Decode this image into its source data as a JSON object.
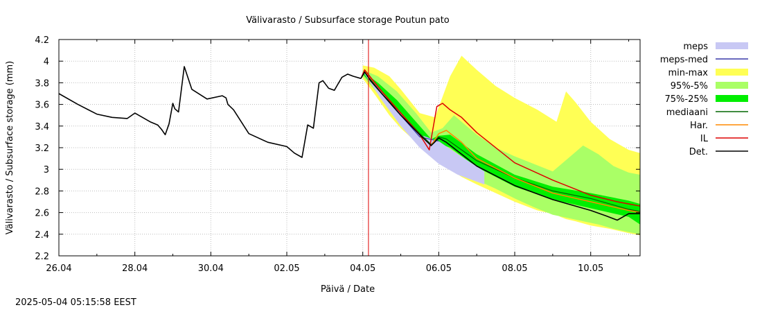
{
  "chart_data": {
    "type": "area",
    "title": "Välivarasto / Subsurface storage  Poutun pato",
    "xlabel": "Päivä / Date",
    "ylabel": "Välivarasto / Subsurface storage (mm)",
    "xlim": [
      0,
      15.3
    ],
    "ylim": [
      2.2,
      4.2
    ],
    "yticks": [
      "2.2",
      "2.4",
      "2.6",
      "2.8",
      "3",
      "3.2",
      "3.4",
      "3.6",
      "3.8",
      "4",
      "4.2"
    ],
    "xticks": [
      {
        "x": 0,
        "label": "26.04"
      },
      {
        "x": 2,
        "label": "28.04"
      },
      {
        "x": 4,
        "label": "30.04"
      },
      {
        "x": 6,
        "label": "02.05"
      },
      {
        "x": 8,
        "label": "04.05"
      },
      {
        "x": 10,
        "label": "06.05"
      },
      {
        "x": 12,
        "label": "08.05"
      },
      {
        "x": 14,
        "label": "10.05"
      }
    ],
    "forecast_start_x": 8.15,
    "timestamp": "2025-05-04 05:15:58 EEST",
    "legend": [
      {
        "label": "meps",
        "kind": "box",
        "color": "#c8c8f4"
      },
      {
        "label": "meps-med",
        "kind": "line",
        "color": "#3838a8"
      },
      {
        "label": "min-max",
        "kind": "box",
        "color": "#ffff55"
      },
      {
        "label": "95%-5%",
        "kind": "box",
        "color": "#aaff66"
      },
      {
        "label": "75%-25%",
        "kind": "box",
        "color": "#00ee00"
      },
      {
        "label": "mediaani",
        "kind": "line",
        "color": "#006600"
      },
      {
        "label": "Har.",
        "kind": "line",
        "color": "#ff8800"
      },
      {
        "label": "IL",
        "kind": "line",
        "color": "#dd0000"
      },
      {
        "label": "Det.",
        "kind": "line",
        "color": "#000000"
      }
    ],
    "series": {
      "observed": {
        "name": "Det. (history)",
        "x": [
          0,
          0.5,
          1.0,
          1.4,
          1.8,
          2.0,
          2.4,
          2.6,
          2.7,
          2.8,
          2.9,
          3.0,
          3.05,
          3.15,
          3.3,
          3.5,
          3.9,
          4.3,
          4.4,
          4.45,
          4.6,
          5.0,
          5.5,
          6.0,
          6.2,
          6.4,
          6.55,
          6.7,
          6.85,
          6.95,
          7.1,
          7.25,
          7.45,
          7.6,
          7.75,
          7.95
        ],
        "y": [
          3.7,
          3.6,
          3.51,
          3.48,
          3.47,
          3.52,
          3.44,
          3.41,
          3.37,
          3.32,
          3.42,
          3.61,
          3.56,
          3.53,
          3.95,
          3.74,
          3.65,
          3.68,
          3.66,
          3.6,
          3.55,
          3.33,
          3.25,
          3.21,
          3.15,
          3.11,
          3.41,
          3.38,
          3.8,
          3.82,
          3.75,
          3.73,
          3.85,
          3.88,
          3.86,
          3.84
        ]
      },
      "det": {
        "name": "Det.",
        "x": [
          7.95,
          8.05,
          8.2,
          8.5,
          9.0,
          9.5,
          9.8,
          10.0,
          10.2,
          10.6,
          11.0,
          12.0,
          13.0,
          14.0,
          14.4,
          14.7,
          15.0,
          15.3
        ],
        "y": [
          3.84,
          3.9,
          3.82,
          3.7,
          3.5,
          3.32,
          3.22,
          3.29,
          3.25,
          3.14,
          3.03,
          2.85,
          2.72,
          2.62,
          2.57,
          2.53,
          2.59,
          2.59
        ]
      },
      "mediaani": {
        "name": "mediaani",
        "x": [
          7.95,
          8.05,
          8.5,
          9.0,
          9.5,
          9.8,
          10.0,
          10.2,
          11.0,
          12.0,
          13.0,
          14.0,
          15.0,
          15.3
        ],
        "y": [
          3.84,
          3.9,
          3.7,
          3.52,
          3.33,
          3.23,
          3.3,
          3.28,
          3.08,
          2.92,
          2.8,
          2.73,
          2.63,
          2.61
        ]
      },
      "har": {
        "name": "Har.",
        "x": [
          7.95,
          8.05,
          8.5,
          9.0,
          9.5,
          9.8,
          10.0,
          10.2,
          10.6,
          11.0,
          12.0,
          13.0,
          14.0,
          15.0,
          15.3
        ],
        "y": [
          3.84,
          3.91,
          3.72,
          3.52,
          3.32,
          3.22,
          3.33,
          3.36,
          3.25,
          3.1,
          2.92,
          2.78,
          2.7,
          2.62,
          2.6
        ]
      },
      "il": {
        "name": "IL",
        "x": [
          7.95,
          8.05,
          8.5,
          9.0,
          9.5,
          9.75,
          9.95,
          10.1,
          10.3,
          10.6,
          11.0,
          12.0,
          13.0,
          14.0,
          14.7,
          15.0,
          15.3
        ],
        "y": [
          3.84,
          3.92,
          3.72,
          3.52,
          3.32,
          3.18,
          3.58,
          3.61,
          3.55,
          3.48,
          3.34,
          3.06,
          2.9,
          2.76,
          2.7,
          2.68,
          2.66
        ]
      },
      "meps_med": {
        "name": "meps-med",
        "x": [
          8.05,
          8.5,
          9.0,
          9.5,
          10.0
        ],
        "y": [
          3.9,
          3.7,
          3.5,
          3.3,
          3.26
        ]
      },
      "meps_band": {
        "name": "meps",
        "x": [
          8.05,
          8.5,
          9.0,
          9.5,
          10.0,
          10.5,
          11.2
        ],
        "upper": [
          3.91,
          3.72,
          3.52,
          3.32,
          3.26,
          3.14,
          2.98
        ],
        "lower": [
          3.88,
          3.64,
          3.4,
          3.2,
          3.05,
          2.95,
          2.86
        ]
      },
      "minmax_band": {
        "name": "min-max",
        "x": [
          8.0,
          8.3,
          8.7,
          9.0,
          9.5,
          9.9,
          10.3,
          10.6,
          11.0,
          11.5,
          12.0,
          12.6,
          13.1,
          13.2,
          13.35,
          13.6,
          14.0,
          14.5,
          15.0,
          15.3
        ],
        "upper": [
          3.96,
          3.94,
          3.86,
          3.74,
          3.52,
          3.48,
          3.86,
          4.05,
          3.92,
          3.77,
          3.66,
          3.55,
          3.44,
          3.55,
          3.72,
          3.62,
          3.44,
          3.28,
          3.18,
          3.15
        ],
        "lower": [
          3.84,
          3.7,
          3.5,
          3.38,
          3.22,
          3.1,
          3.0,
          2.93,
          2.86,
          2.78,
          2.7,
          2.62,
          2.58,
          2.56,
          2.54,
          2.52,
          2.48,
          2.45,
          2.41,
          2.39
        ]
      },
      "p95_5_band": {
        "name": "95%-5%",
        "x": [
          8.0,
          8.4,
          8.9,
          9.4,
          9.8,
          10.1,
          10.4,
          11.0,
          11.5,
          12.0,
          12.5,
          13.0,
          13.4,
          13.8,
          14.2,
          14.6,
          15.0,
          15.3
        ],
        "upper": [
          3.92,
          3.86,
          3.72,
          3.52,
          3.34,
          3.38,
          3.5,
          3.32,
          3.2,
          3.12,
          3.05,
          2.98,
          3.1,
          3.22,
          3.14,
          3.03,
          2.97,
          2.95
        ],
        "lower": [
          3.86,
          3.7,
          3.5,
          3.3,
          3.16,
          3.1,
          3.02,
          2.9,
          2.82,
          2.73,
          2.65,
          2.58,
          2.55,
          2.52,
          2.49,
          2.45,
          2.42,
          2.4
        ]
      },
      "p75_25_band": {
        "name": "75%-25%",
        "x": [
          8.0,
          8.4,
          8.9,
          9.4,
          9.8,
          10.0,
          10.3,
          11.0,
          12.0,
          13.0,
          14.0,
          15.0,
          15.3
        ],
        "upper": [
          3.9,
          3.8,
          3.64,
          3.44,
          3.28,
          3.31,
          3.32,
          3.14,
          2.95,
          2.84,
          2.78,
          2.71,
          2.68
        ],
        "lower": [
          3.88,
          3.72,
          3.54,
          3.34,
          3.2,
          3.24,
          3.2,
          3.02,
          2.84,
          2.72,
          2.64,
          2.56,
          2.49
        ]
      }
    }
  }
}
